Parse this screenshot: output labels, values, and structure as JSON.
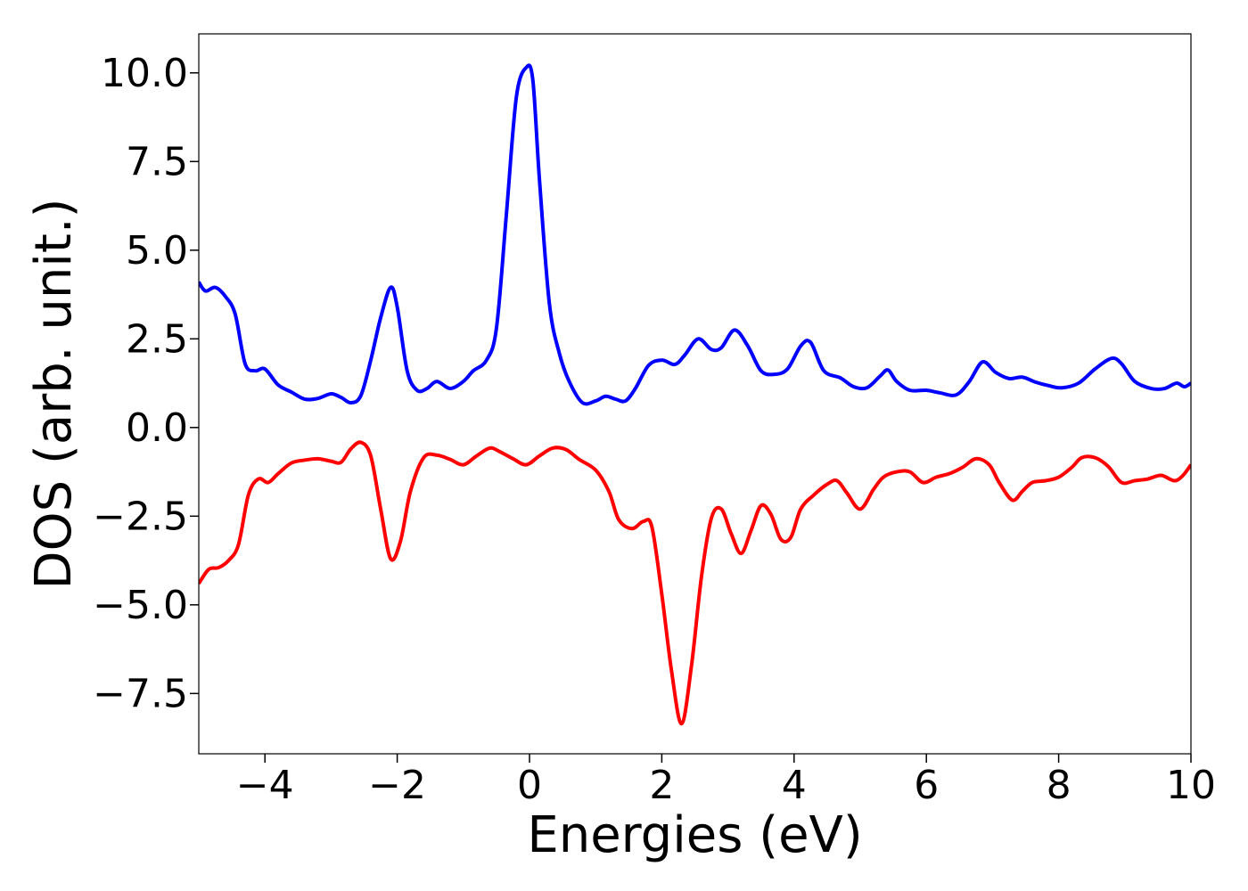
{
  "chart_data": {
    "type": "line",
    "title": "",
    "xlabel": "Energies (eV)",
    "ylabel": "DOS (arb. unit.)",
    "xlim": [
      -5,
      10
    ],
    "ylim": [
      -9.2,
      11.1
    ],
    "grid": false,
    "legend": "none",
    "xticks": [
      {
        "value": -4,
        "label": "−4"
      },
      {
        "value": -2,
        "label": "−2"
      },
      {
        "value": 0,
        "label": "0"
      },
      {
        "value": 2,
        "label": "2"
      },
      {
        "value": 4,
        "label": "4"
      },
      {
        "value": 6,
        "label": "6"
      },
      {
        "value": 8,
        "label": "8"
      },
      {
        "value": 10,
        "label": "10"
      }
    ],
    "yticks": [
      {
        "value": 10.0,
        "label": "10.0"
      },
      {
        "value": 7.5,
        "label": "7.5"
      },
      {
        "value": 5.0,
        "label": "5.0"
      },
      {
        "value": 2.5,
        "label": "2.5"
      },
      {
        "value": 0.0,
        "label": "0.0"
      },
      {
        "value": -2.5,
        "label": "−2.5"
      },
      {
        "value": -5.0,
        "label": "−5.0"
      },
      {
        "value": -7.5,
        "label": "−7.5"
      }
    ],
    "series": [
      {
        "color": "#0000ff",
        "points": [
          [
            -5.0,
            4.1
          ],
          [
            -4.9,
            3.85
          ],
          [
            -4.75,
            3.95
          ],
          [
            -4.6,
            3.7
          ],
          [
            -4.45,
            3.2
          ],
          [
            -4.3,
            1.8
          ],
          [
            -4.15,
            1.6
          ],
          [
            -4.0,
            1.65
          ],
          [
            -3.8,
            1.2
          ],
          [
            -3.6,
            1.0
          ],
          [
            -3.4,
            0.8
          ],
          [
            -3.2,
            0.82
          ],
          [
            -3.0,
            0.95
          ],
          [
            -2.85,
            0.85
          ],
          [
            -2.7,
            0.7
          ],
          [
            -2.55,
            0.9
          ],
          [
            -2.4,
            1.9
          ],
          [
            -2.25,
            3.1
          ],
          [
            -2.1,
            3.95
          ],
          [
            -2.0,
            3.4
          ],
          [
            -1.85,
            1.6
          ],
          [
            -1.7,
            1.05
          ],
          [
            -1.55,
            1.1
          ],
          [
            -1.4,
            1.3
          ],
          [
            -1.2,
            1.1
          ],
          [
            -1.0,
            1.3
          ],
          [
            -0.85,
            1.6
          ],
          [
            -0.65,
            1.9
          ],
          [
            -0.5,
            2.8
          ],
          [
            -0.35,
            6.0
          ],
          [
            -0.2,
            9.3
          ],
          [
            -0.05,
            10.15
          ],
          [
            0.05,
            9.8
          ],
          [
            0.15,
            7.0
          ],
          [
            0.3,
            3.5
          ],
          [
            0.45,
            2.1
          ],
          [
            0.6,
            1.3
          ],
          [
            0.8,
            0.7
          ],
          [
            1.0,
            0.75
          ],
          [
            1.15,
            0.88
          ],
          [
            1.3,
            0.8
          ],
          [
            1.45,
            0.75
          ],
          [
            1.6,
            1.1
          ],
          [
            1.8,
            1.75
          ],
          [
            2.0,
            1.9
          ],
          [
            2.2,
            1.78
          ],
          [
            2.35,
            2.05
          ],
          [
            2.55,
            2.5
          ],
          [
            2.75,
            2.2
          ],
          [
            2.9,
            2.25
          ],
          [
            3.1,
            2.75
          ],
          [
            3.3,
            2.3
          ],
          [
            3.5,
            1.6
          ],
          [
            3.7,
            1.5
          ],
          [
            3.9,
            1.65
          ],
          [
            4.1,
            2.3
          ],
          [
            4.25,
            2.4
          ],
          [
            4.45,
            1.6
          ],
          [
            4.7,
            1.4
          ],
          [
            4.9,
            1.15
          ],
          [
            5.1,
            1.12
          ],
          [
            5.3,
            1.45
          ],
          [
            5.42,
            1.62
          ],
          [
            5.55,
            1.3
          ],
          [
            5.75,
            1.05
          ],
          [
            6.0,
            1.05
          ],
          [
            6.2,
            0.98
          ],
          [
            6.45,
            0.92
          ],
          [
            6.65,
            1.3
          ],
          [
            6.85,
            1.85
          ],
          [
            7.05,
            1.55
          ],
          [
            7.25,
            1.38
          ],
          [
            7.45,
            1.42
          ],
          [
            7.65,
            1.28
          ],
          [
            7.85,
            1.18
          ],
          [
            8.05,
            1.12
          ],
          [
            8.3,
            1.25
          ],
          [
            8.55,
            1.65
          ],
          [
            8.8,
            1.95
          ],
          [
            8.95,
            1.8
          ],
          [
            9.15,
            1.3
          ],
          [
            9.4,
            1.1
          ],
          [
            9.6,
            1.1
          ],
          [
            9.78,
            1.25
          ],
          [
            9.9,
            1.15
          ],
          [
            10.0,
            1.25
          ]
        ]
      },
      {
        "color": "#ff0000",
        "points": [
          [
            -5.0,
            -4.4
          ],
          [
            -4.85,
            -4.0
          ],
          [
            -4.7,
            -3.95
          ],
          [
            -4.55,
            -3.75
          ],
          [
            -4.4,
            -3.3
          ],
          [
            -4.25,
            -1.9
          ],
          [
            -4.1,
            -1.45
          ],
          [
            -3.95,
            -1.55
          ],
          [
            -3.8,
            -1.3
          ],
          [
            -3.6,
            -1.0
          ],
          [
            -3.4,
            -0.92
          ],
          [
            -3.2,
            -0.88
          ],
          [
            -3.0,
            -0.95
          ],
          [
            -2.85,
            -0.98
          ],
          [
            -2.7,
            -0.6
          ],
          [
            -2.55,
            -0.42
          ],
          [
            -2.4,
            -0.8
          ],
          [
            -2.25,
            -2.3
          ],
          [
            -2.1,
            -3.7
          ],
          [
            -1.95,
            -3.2
          ],
          [
            -1.8,
            -1.8
          ],
          [
            -1.6,
            -0.85
          ],
          [
            -1.4,
            -0.78
          ],
          [
            -1.2,
            -0.9
          ],
          [
            -1.0,
            -1.05
          ],
          [
            -0.8,
            -0.8
          ],
          [
            -0.6,
            -0.58
          ],
          [
            -0.45,
            -0.68
          ],
          [
            -0.25,
            -0.88
          ],
          [
            -0.05,
            -1.05
          ],
          [
            0.15,
            -0.8
          ],
          [
            0.35,
            -0.58
          ],
          [
            0.55,
            -0.62
          ],
          [
            0.75,
            -0.9
          ],
          [
            1.0,
            -1.2
          ],
          [
            1.2,
            -1.8
          ],
          [
            1.35,
            -2.6
          ],
          [
            1.55,
            -2.85
          ],
          [
            1.72,
            -2.65
          ],
          [
            1.85,
            -2.8
          ],
          [
            2.0,
            -4.7
          ],
          [
            2.15,
            -6.9
          ],
          [
            2.3,
            -8.35
          ],
          [
            2.45,
            -6.7
          ],
          [
            2.6,
            -4.2
          ],
          [
            2.75,
            -2.55
          ],
          [
            2.9,
            -2.3
          ],
          [
            3.05,
            -3.0
          ],
          [
            3.2,
            -3.55
          ],
          [
            3.35,
            -2.9
          ],
          [
            3.5,
            -2.2
          ],
          [
            3.65,
            -2.45
          ],
          [
            3.8,
            -3.15
          ],
          [
            3.95,
            -3.1
          ],
          [
            4.1,
            -2.3
          ],
          [
            4.3,
            -1.9
          ],
          [
            4.5,
            -1.6
          ],
          [
            4.65,
            -1.5
          ],
          [
            4.8,
            -1.85
          ],
          [
            5.0,
            -2.3
          ],
          [
            5.2,
            -1.75
          ],
          [
            5.35,
            -1.4
          ],
          [
            5.55,
            -1.25
          ],
          [
            5.75,
            -1.25
          ],
          [
            5.95,
            -1.55
          ],
          [
            6.15,
            -1.4
          ],
          [
            6.35,
            -1.3
          ],
          [
            6.55,
            -1.12
          ],
          [
            6.75,
            -0.88
          ],
          [
            6.95,
            -1.05
          ],
          [
            7.1,
            -1.55
          ],
          [
            7.3,
            -2.05
          ],
          [
            7.45,
            -1.8
          ],
          [
            7.6,
            -1.55
          ],
          [
            7.8,
            -1.5
          ],
          [
            8.0,
            -1.4
          ],
          [
            8.2,
            -1.12
          ],
          [
            8.35,
            -0.85
          ],
          [
            8.55,
            -0.85
          ],
          [
            8.75,
            -1.1
          ],
          [
            8.95,
            -1.55
          ],
          [
            9.15,
            -1.5
          ],
          [
            9.35,
            -1.45
          ],
          [
            9.55,
            -1.35
          ],
          [
            9.75,
            -1.5
          ],
          [
            9.88,
            -1.35
          ],
          [
            10.0,
            -1.05
          ]
        ]
      }
    ]
  }
}
